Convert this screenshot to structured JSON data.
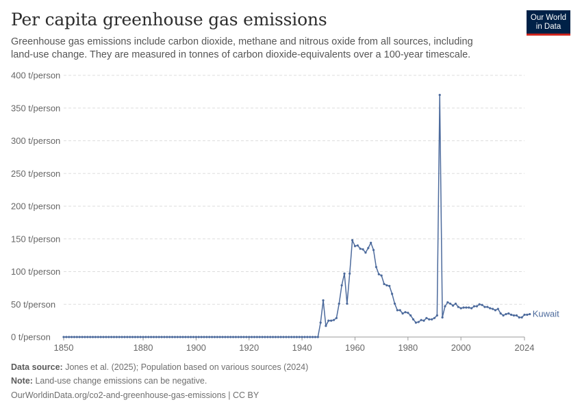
{
  "header": {
    "title": "Per capita greenhouse gas emissions",
    "subtitle": "Greenhouse gas emissions include carbon dioxide, methane and nitrous oxide from all sources, including land-use change. They are measured in tonnes of carbon dioxide-equivalents over a 100-year timescale."
  },
  "logo": {
    "line1": "Our World",
    "line2": "in Data"
  },
  "footer": {
    "source_label": "Data source:",
    "source_text": "Jones et al. (2025); Population based on various sources (2024)",
    "note_label": "Note:",
    "note_text": "Land-use change emissions can be negative.",
    "url_text": "OurWorldinData.org/co2-and-greenhouse-gas-emissions | CC BY"
  },
  "colors": {
    "series": "#4c6a9c",
    "grid": "#dddddd",
    "axis": "#999999",
    "logo_bg": "#002147",
    "logo_accent": "#ce261e"
  },
  "chart_data": {
    "type": "line",
    "xlim": [
      1850,
      2024
    ],
    "ylim": [
      0,
      400
    ],
    "y_ticks": [
      0,
      50,
      100,
      150,
      200,
      250,
      300,
      350,
      400
    ],
    "y_tick_labels": [
      "0 t/person",
      "50 t/person",
      "100 t/person",
      "150 t/person",
      "200 t/person",
      "250 t/person",
      "300 t/person",
      "350 t/person",
      "400 t/person"
    ],
    "x_ticks": [
      1850,
      1880,
      1900,
      1920,
      1940,
      1960,
      1980,
      2000,
      2024
    ],
    "grid": "horizontal dashed",
    "series": [
      {
        "name": "Kuwait",
        "x_start": 1850,
        "values": [
          0,
          0,
          0,
          0,
          0,
          0,
          0,
          0,
          0,
          0,
          0,
          0,
          0,
          0,
          0,
          0,
          0,
          0,
          0,
          0,
          0,
          0,
          0,
          0,
          0,
          0,
          0,
          0,
          0,
          0,
          0,
          0,
          0,
          0,
          0,
          0,
          0,
          0,
          0,
          0,
          0,
          0,
          0,
          0,
          0,
          0,
          0,
          0,
          0,
          0,
          0,
          0,
          0,
          0,
          0,
          0,
          0,
          0,
          0,
          0,
          0,
          0,
          0,
          0,
          0,
          0,
          0,
          0,
          0,
          0,
          0,
          0,
          0,
          0,
          0,
          0,
          0,
          0,
          0,
          0,
          0,
          0,
          0,
          0,
          0,
          0,
          0,
          0,
          0,
          0,
          0,
          0,
          0,
          0,
          0,
          0,
          0,
          22,
          56,
          17,
          25,
          25,
          26,
          29,
          51,
          79,
          97,
          51,
          97,
          148,
          139,
          140,
          135,
          134,
          129,
          136,
          144,
          133,
          107,
          96,
          94,
          81,
          79,
          78,
          66,
          51,
          41,
          41,
          36,
          38,
          37,
          33,
          27,
          22,
          23,
          26,
          25,
          29,
          27,
          27,
          29,
          33,
          370,
          30,
          47,
          53,
          51,
          48,
          51,
          46,
          44,
          45,
          45,
          45,
          44,
          47,
          47,
          50,
          49,
          46,
          46,
          44,
          43,
          41,
          43,
          36,
          33,
          35,
          36,
          34,
          33,
          33,
          30,
          30,
          34,
          34,
          35
        ]
      }
    ]
  }
}
